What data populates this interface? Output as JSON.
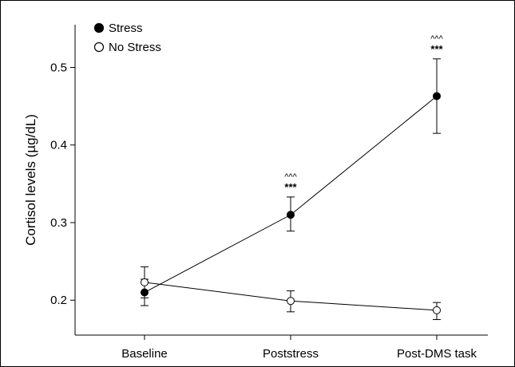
{
  "chart_data": {
    "type": "line",
    "title": "",
    "xlabel": "",
    "ylabel": "Cortisol levels (µg/dL)",
    "categories": [
      "Baseline",
      "Poststress",
      "Post-DMS task"
    ],
    "ylim": [
      0.155,
      0.555
    ],
    "yticks": [
      0.2,
      0.3,
      0.4,
      0.5
    ],
    "ytick_labels": [
      "0.2",
      "0.3",
      "0.4",
      "0.5"
    ],
    "grid": false,
    "legend_position": "top-left",
    "series": [
      {
        "name": "Stress",
        "marker": "filled-circle",
        "color": "#000000",
        "values": [
          0.21,
          0.31,
          0.463
        ],
        "err_low": [
          0.193,
          0.289,
          0.415
        ],
        "err_high": [
          0.227,
          0.333,
          0.511
        ]
      },
      {
        "name": "No Stress",
        "marker": "open-circle",
        "color": "#000000",
        "values": [
          0.223,
          0.199,
          0.187
        ],
        "err_low": [
          0.203,
          0.185,
          0.175
        ],
        "err_high": [
          0.243,
          0.212,
          0.197
        ]
      }
    ],
    "annotations": [
      {
        "category_index": 1,
        "series": 0,
        "lines": [
          "^^^",
          "***"
        ]
      },
      {
        "category_index": 2,
        "series": 0,
        "lines": [
          "^^^",
          "***"
        ]
      }
    ]
  }
}
